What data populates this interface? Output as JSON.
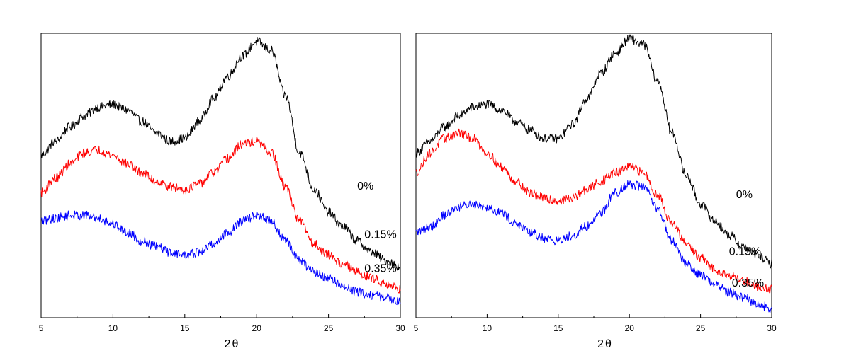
{
  "chart_data": [
    {
      "type": "line",
      "title": "",
      "xlabel": "2θ",
      "ylabel": "",
      "xlim": [
        5,
        30
      ],
      "ylim": [
        0,
        100
      ],
      "xticks": [
        5,
        10,
        15,
        20,
        25,
        30
      ],
      "xtick_labels": [
        "5",
        "10",
        "15",
        "20",
        "25",
        "30"
      ],
      "series": [
        {
          "name": "0%",
          "color": "#000000",
          "x": [
            5,
            6,
            7,
            8,
            9,
            10,
            11,
            12,
            13,
            14,
            15,
            16,
            17,
            18,
            19,
            20,
            21,
            22,
            23,
            24,
            25,
            26,
            27,
            28,
            29,
            30
          ],
          "y": [
            57,
            62,
            67,
            71,
            74,
            75,
            73,
            69,
            65,
            62,
            63,
            69,
            77,
            85,
            92,
            97,
            94,
            78,
            58,
            45,
            37,
            32,
            27,
            23,
            20,
            18
          ]
        },
        {
          "name": "0.15%",
          "color": "#ff0000",
          "x": [
            5,
            6,
            7,
            8,
            9,
            10,
            11,
            12,
            13,
            14,
            15,
            16,
            17,
            18,
            19,
            20,
            21,
            22,
            23,
            24,
            25,
            26,
            27,
            28,
            29,
            30
          ],
          "y": [
            44,
            49,
            54,
            58,
            59,
            57,
            54,
            51,
            48,
            46,
            45,
            47,
            51,
            56,
            61,
            62,
            58,
            46,
            34,
            26,
            22,
            19,
            16,
            14,
            12,
            10
          ]
        },
        {
          "name": "0.35%",
          "color": "#0000ff",
          "x": [
            5,
            6,
            7,
            8,
            9,
            10,
            11,
            12,
            13,
            14,
            15,
            16,
            17,
            18,
            19,
            20,
            21,
            22,
            23,
            24,
            25,
            26,
            27,
            28,
            29,
            30
          ],
          "y": [
            34,
            35,
            36,
            36,
            35,
            33,
            30,
            27,
            25,
            23,
            22,
            23,
            26,
            30,
            34,
            36,
            34,
            27,
            20,
            16,
            14,
            11,
            9,
            8,
            7,
            6
          ]
        }
      ],
      "annotations": [
        {
          "text": "0%",
          "x": 27,
          "y": 45
        },
        {
          "text": "0.15%",
          "x": 27.5,
          "y": 28
        },
        {
          "text": "0.35%",
          "x": 27.5,
          "y": 16
        }
      ]
    },
    {
      "type": "line",
      "title": "",
      "xlabel": "2θ",
      "ylabel": "",
      "xlim": [
        5,
        30
      ],
      "ylim": [
        0,
        100
      ],
      "xticks": [
        5,
        10,
        15,
        20,
        25,
        30
      ],
      "xtick_labels": [
        "5",
        "10",
        "15",
        "20",
        "25",
        "30"
      ],
      "series": [
        {
          "name": "0%",
          "color": "#000000",
          "x": [
            5,
            6,
            7,
            8,
            9,
            10,
            11,
            12,
            13,
            14,
            15,
            16,
            17,
            18,
            19,
            20,
            21,
            22,
            23,
            24,
            25,
            26,
            27,
            28,
            29,
            30
          ],
          "y": [
            58,
            62,
            67,
            71,
            74,
            75,
            73,
            69,
            66,
            63,
            63,
            68,
            77,
            86,
            93,
            98,
            96,
            83,
            65,
            50,
            40,
            34,
            29,
            25,
            22,
            19
          ]
        },
        {
          "name": "0.15%",
          "color": "#ff0000",
          "x": [
            5,
            6,
            7,
            8,
            9,
            10,
            11,
            12,
            13,
            14,
            15,
            16,
            17,
            18,
            19,
            20,
            21,
            22,
            23,
            24,
            25,
            26,
            27,
            28,
            29,
            30
          ],
          "y": [
            51,
            58,
            63,
            65,
            63,
            58,
            53,
            48,
            44,
            42,
            41,
            42,
            45,
            48,
            51,
            53,
            51,
            43,
            33,
            26,
            21,
            17,
            15,
            13,
            11,
            10
          ]
        },
        {
          "name": "0.35%",
          "color": "#0000ff",
          "x": [
            5,
            6,
            7,
            8,
            9,
            10,
            11,
            12,
            13,
            14,
            15,
            16,
            17,
            18,
            19,
            20,
            21,
            22,
            23,
            24,
            25,
            26,
            27,
            28,
            29,
            30
          ],
          "y": [
            30,
            32,
            36,
            39,
            40,
            39,
            37,
            33,
            30,
            28,
            27,
            29,
            32,
            37,
            44,
            47,
            46,
            38,
            27,
            19,
            15,
            12,
            9,
            7,
            5,
            3
          ]
        }
      ],
      "annotations": [
        {
          "text": "0%",
          "x": 27.5,
          "y": 42
        },
        {
          "text": "0.15%",
          "x": 27,
          "y": 22
        },
        {
          "text": "0.35%",
          "x": 27.2,
          "y": 11
        }
      ]
    }
  ]
}
